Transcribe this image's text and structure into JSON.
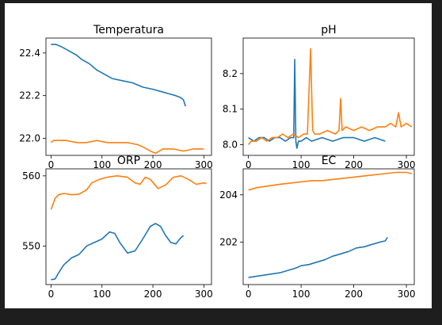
{
  "colors": {
    "series_1": "#1f77b4",
    "series_2": "#ff7f0e",
    "window_bg": "#1e1e1e"
  },
  "chart_data": [
    {
      "type": "line",
      "title": "Temperatura",
      "xlim": [
        -10,
        315
      ],
      "ylim": [
        21.92,
        22.47
      ],
      "xticks": [
        0,
        100,
        200,
        300
      ],
      "yticks": [
        22.0,
        22.2,
        22.4
      ],
      "ytick_labels": [
        "22.0",
        "22.2",
        "22.4"
      ],
      "series": [
        {
          "color": "#1f77b4",
          "x": [
            0,
            10,
            20,
            35,
            50,
            60,
            75,
            90,
            105,
            120,
            140,
            160,
            180,
            200,
            215,
            230,
            245,
            255,
            260,
            264
          ],
          "y": [
            22.44,
            22.44,
            22.43,
            22.41,
            22.39,
            22.37,
            22.35,
            22.32,
            22.3,
            22.28,
            22.27,
            22.26,
            22.24,
            22.23,
            22.22,
            22.21,
            22.2,
            22.19,
            22.18,
            22.15
          ]
        },
        {
          "color": "#ff7f0e",
          "x": [
            0,
            5,
            15,
            30,
            50,
            70,
            90,
            110,
            130,
            150,
            170,
            180,
            195,
            205,
            220,
            240,
            260,
            280,
            300
          ],
          "y": [
            21.98,
            21.99,
            21.99,
            21.99,
            21.98,
            21.98,
            21.99,
            21.98,
            21.98,
            21.98,
            21.97,
            21.96,
            21.94,
            21.93,
            21.95,
            21.95,
            21.94,
            21.95,
            21.95
          ]
        }
      ]
    },
    {
      "type": "line",
      "title": "pH",
      "xlim": [
        -10,
        315
      ],
      "ylim": [
        7.97,
        8.3
      ],
      "xticks": [
        0,
        100,
        200,
        300
      ],
      "yticks": [
        8.0,
        8.1,
        8.2
      ],
      "ytick_labels": [
        "8.0",
        "8.1",
        "8.2"
      ],
      "series": [
        {
          "color": "#1f77b4",
          "x": [
            0,
            10,
            20,
            30,
            40,
            50,
            60,
            70,
            80,
            86,
            88,
            90,
            92,
            95,
            100,
            110,
            120,
            140,
            160,
            180,
            200,
            220,
            240,
            260
          ],
          "y": [
            8.02,
            8.01,
            8.02,
            8.02,
            8.01,
            8.02,
            8.02,
            8.01,
            8.02,
            8.02,
            8.24,
            8.01,
            7.99,
            8.01,
            8.01,
            8.02,
            8.01,
            8.02,
            8.01,
            8.02,
            8.02,
            8.01,
            8.02,
            8.01
          ]
        },
        {
          "color": "#ff7f0e",
          "x": [
            0,
            5,
            15,
            25,
            35,
            45,
            55,
            65,
            75,
            85,
            95,
            105,
            112,
            118,
            122,
            126,
            135,
            150,
            165,
            172,
            175,
            178,
            185,
            200,
            215,
            230,
            245,
            260,
            270,
            280,
            285,
            290,
            300,
            310
          ],
          "y": [
            8.0,
            8.01,
            8.01,
            8.02,
            8.01,
            8.02,
            8.02,
            8.03,
            8.02,
            8.03,
            8.02,
            8.03,
            8.03,
            8.27,
            8.04,
            8.03,
            8.03,
            8.04,
            8.03,
            8.04,
            8.13,
            8.04,
            8.05,
            8.04,
            8.05,
            8.04,
            8.05,
            8.05,
            8.06,
            8.05,
            8.09,
            8.05,
            8.06,
            8.05
          ]
        }
      ]
    },
    {
      "type": "line",
      "title": "ORP",
      "xlim": [
        -10,
        315
      ],
      "ylim": [
        544.5,
        561.0
      ],
      "xticks": [
        0,
        100,
        200,
        300
      ],
      "yticks": [
        550,
        560
      ],
      "ytick_labels": [
        "550",
        "560"
      ],
      "series": [
        {
          "color": "#1f77b4",
          "x": [
            0,
            8,
            15,
            25,
            40,
            55,
            70,
            85,
            100,
            115,
            125,
            135,
            150,
            165,
            180,
            195,
            205,
            215,
            225,
            235,
            245,
            255,
            260
          ],
          "y": [
            545.2,
            545.3,
            546.2,
            547.3,
            548.3,
            548.8,
            550.0,
            550.5,
            551.0,
            552.0,
            551.8,
            550.5,
            549.0,
            549.3,
            551.0,
            552.8,
            553.2,
            552.8,
            551.5,
            550.5,
            550.3,
            551.2,
            551.5
          ]
        },
        {
          "color": "#ff7f0e",
          "x": [
            0,
            8,
            15,
            25,
            40,
            55,
            70,
            80,
            95,
            110,
            130,
            150,
            165,
            175,
            185,
            195,
            210,
            225,
            240,
            255,
            270,
            285,
            300,
            305
          ],
          "y": [
            555.2,
            556.8,
            557.3,
            557.5,
            557.3,
            557.4,
            558.0,
            559.0,
            559.5,
            559.8,
            560.0,
            559.8,
            559.0,
            558.8,
            559.8,
            559.5,
            558.2,
            558.7,
            559.8,
            560.0,
            559.5,
            558.8,
            559.0,
            558.9
          ]
        }
      ]
    },
    {
      "type": "line",
      "title": "EC",
      "xlim": [
        -10,
        315
      ],
      "ylim": [
        200.2,
        205.1
      ],
      "xticks": [
        0,
        100,
        200,
        300
      ],
      "yticks": [
        202,
        204
      ],
      "ytick_labels": [
        "202",
        "204"
      ],
      "series": [
        {
          "color": "#1f77b4",
          "x": [
            0,
            15,
            30,
            45,
            60,
            75,
            90,
            100,
            115,
            130,
            145,
            160,
            175,
            190,
            205,
            220,
            235,
            250,
            260,
            264
          ],
          "y": [
            200.5,
            200.55,
            200.6,
            200.65,
            200.7,
            200.8,
            200.9,
            201.0,
            201.05,
            201.15,
            201.25,
            201.4,
            201.5,
            201.6,
            201.75,
            201.8,
            201.9,
            202.0,
            202.05,
            202.2
          ]
        },
        {
          "color": "#ff7f0e",
          "x": [
            0,
            15,
            30,
            45,
            60,
            80,
            100,
            120,
            140,
            160,
            180,
            200,
            220,
            240,
            260,
            280,
            300,
            310
          ],
          "y": [
            204.2,
            204.3,
            204.35,
            204.4,
            204.45,
            204.5,
            204.55,
            204.6,
            204.6,
            204.65,
            204.7,
            204.75,
            204.8,
            204.85,
            204.9,
            204.95,
            204.95,
            204.9
          ]
        }
      ]
    }
  ]
}
